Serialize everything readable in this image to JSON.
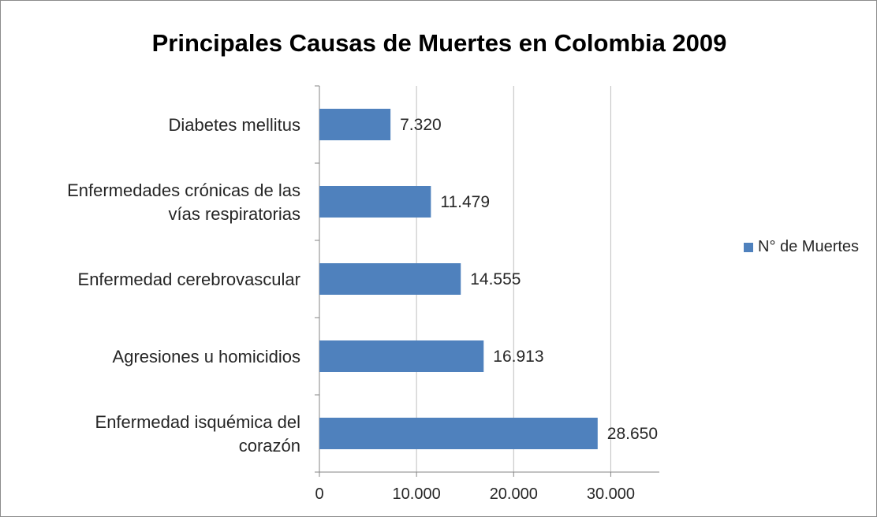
{
  "chart_data": {
    "type": "bar",
    "orientation": "horizontal",
    "title": "Principales Causas de Muertes en Colombia 2009",
    "categories": [
      "Diabetes mellitus",
      "Enfermedades crónicas de las vías respiratorias",
      "Enfermedad cerebrovascular",
      "Agresiones u homicidios",
      "Enfermedad isquémica del corazón"
    ],
    "category_label_lines": [
      [
        "Diabetes mellitus"
      ],
      [
        "Enfermedades crónicas de las",
        "vías respiratorias"
      ],
      [
        "Enfermedad cerebrovascular"
      ],
      [
        "Agresiones u homicidios"
      ],
      [
        "Enfermedad isquémica del",
        "corazón"
      ]
    ],
    "series": [
      {
        "name": "N° de Muertes",
        "values": [
          7320,
          11479,
          14555,
          16913,
          28650
        ],
        "labels": [
          "7.320",
          "11.479",
          "14.555",
          "16.913",
          "28.650"
        ],
        "color": "#4f81bd"
      }
    ],
    "xlim": [
      0,
      35000
    ],
    "xticks": [
      0,
      10000,
      20000,
      30000
    ],
    "xtick_labels": [
      "0",
      "10.000",
      "20.000",
      "30.000"
    ],
    "xlabel": "",
    "ylabel": "",
    "grid": "vertical",
    "legend": "right"
  }
}
